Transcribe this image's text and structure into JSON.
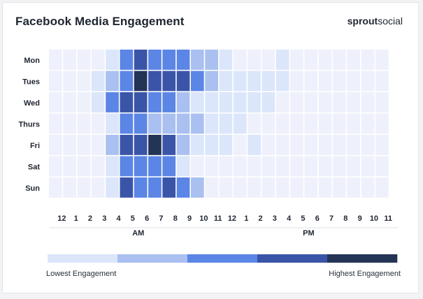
{
  "header": {
    "title": "Facebook Media Engagement",
    "brand_bold": "sprout",
    "brand_light": "social"
  },
  "legend": {
    "low_label": "Lowest Engagement",
    "high_label": "Highest Engagement",
    "levels": [
      "#dbe6fb",
      "#a9c0f0",
      "#5b86e6",
      "#3a55a8",
      "#243456"
    ]
  },
  "colors": {
    "empty": "#eef1fb",
    "levels": [
      "#dbe6fb",
      "#a9c0f0",
      "#5b86e6",
      "#3a55a8",
      "#243456"
    ]
  },
  "chart_data": {
    "type": "heatmap",
    "title": "Facebook Media Engagement",
    "rows": [
      "Mon",
      "Tues",
      "Wed",
      "Thurs",
      "Fri",
      "Sat",
      "Sun"
    ],
    "columns": [
      "12",
      "1",
      "2",
      "3",
      "4",
      "5",
      "6",
      "7",
      "8",
      "9",
      "10",
      "11",
      "12",
      "1",
      "2",
      "3",
      "4",
      "5",
      "6",
      "7",
      "8",
      "9",
      "10",
      "11"
    ],
    "column_groups": [
      {
        "label": "AM",
        "start": 0,
        "end": 11
      },
      {
        "label": "PM",
        "start": 12,
        "end": 23
      }
    ],
    "scale": "0 = no engagement shading, 1 = lowest … 5 = highest",
    "values": [
      [
        0,
        0,
        0,
        0,
        1,
        3,
        4,
        3,
        3,
        3,
        2,
        2,
        1,
        0,
        0,
        0,
        1,
        0,
        0,
        0,
        0,
        0,
        0,
        0
      ],
      [
        0,
        0,
        0,
        1,
        2,
        3,
        5,
        4,
        4,
        4,
        3,
        2,
        1,
        1,
        1,
        1,
        1,
        0,
        0,
        0,
        0,
        0,
        0,
        0
      ],
      [
        0,
        0,
        0,
        1,
        3,
        4,
        4,
        3,
        3,
        2,
        1,
        1,
        1,
        1,
        1,
        1,
        0,
        0,
        0,
        0,
        0,
        0,
        0,
        0
      ],
      [
        0,
        0,
        0,
        0,
        1,
        3,
        3,
        2,
        2,
        2,
        2,
        1,
        1,
        1,
        0,
        0,
        0,
        0,
        0,
        0,
        0,
        0,
        0,
        0
      ],
      [
        0,
        0,
        0,
        0,
        2,
        4,
        4,
        5,
        4,
        2,
        1,
        1,
        1,
        0,
        1,
        0,
        0,
        0,
        0,
        0,
        0,
        0,
        0,
        0
      ],
      [
        0,
        0,
        0,
        0,
        1,
        3,
        3,
        3,
        3,
        1,
        0,
        0,
        0,
        0,
        0,
        0,
        0,
        0,
        0,
        0,
        0,
        0,
        0,
        0
      ],
      [
        0,
        0,
        0,
        0,
        1,
        4,
        3,
        3,
        4,
        3,
        2,
        0,
        0,
        0,
        0,
        0,
        0,
        0,
        0,
        0,
        0,
        0,
        0,
        0
      ]
    ]
  }
}
